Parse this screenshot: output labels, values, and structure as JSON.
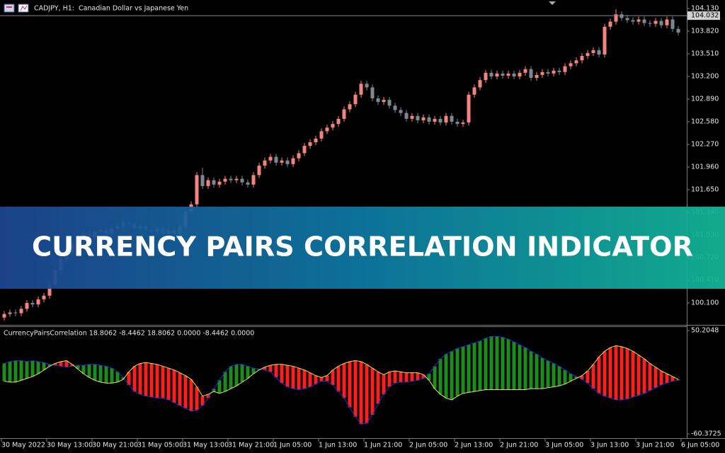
{
  "chart_data": [
    {
      "type": "candlestick",
      "title": "CADJPY, H1:  Canadian Dollar vs Japanese Yen",
      "up_color": "#f4837d",
      "down_color": "#7d8790",
      "open": [
        99.9,
        99.95,
        99.97,
        99.96,
        100.02,
        100.1,
        100.08,
        100.15,
        100.2,
        100.35,
        100.55,
        100.7,
        100.78,
        100.9,
        100.98,
        101.05,
        101.0,
        101.08,
        101.1,
        101.05,
        101.12,
        101.15,
        101.2,
        101.18,
        101.12,
        101.15,
        101.1,
        101.08,
        101.12,
        101.05,
        101.1,
        101.05,
        101.15,
        101.35,
        101.45,
        101.85,
        101.7,
        101.78,
        101.72,
        101.76,
        101.8,
        101.78,
        101.8,
        101.75,
        101.72,
        101.85,
        101.98,
        102.05,
        102.1,
        102.02,
        102.05,
        102.0,
        102.08,
        102.15,
        102.25,
        102.3,
        102.35,
        102.45,
        102.5,
        102.55,
        102.62,
        102.75,
        102.82,
        102.95,
        103.1,
        103.05,
        102.9,
        102.85,
        102.88,
        102.8,
        102.74,
        102.7,
        102.62,
        102.66,
        102.6,
        102.64,
        102.58,
        102.62,
        102.57,
        102.66,
        102.58,
        102.55,
        102.57,
        102.95,
        103.05,
        103.15,
        103.25,
        103.2,
        103.24,
        103.21,
        103.24,
        103.2,
        103.25,
        103.3,
        103.18,
        103.22,
        103.26,
        103.24,
        103.28,
        103.26,
        103.34,
        103.38,
        103.42,
        103.48,
        103.52,
        103.56,
        103.5,
        103.88,
        103.95,
        104.05,
        104.0,
        103.97,
        103.95,
        103.98,
        103.93,
        103.92,
        103.96,
        103.9,
        103.98,
        103.85
      ],
      "high": [
        99.99,
        100.01,
        100.01,
        100.06,
        100.14,
        100.14,
        100.19,
        100.24,
        100.39,
        100.59,
        100.74,
        100.82,
        100.94,
        101.02,
        101.09,
        101.09,
        101.12,
        101.14,
        101.14,
        101.16,
        101.19,
        101.24,
        101.24,
        101.22,
        101.19,
        101.19,
        101.14,
        101.16,
        101.16,
        101.14,
        101.14,
        101.19,
        101.39,
        101.49,
        101.89,
        101.95,
        101.82,
        101.82,
        101.8,
        101.84,
        101.84,
        101.84,
        101.84,
        101.79,
        101.89,
        102.02,
        102.09,
        102.14,
        102.14,
        102.09,
        102.09,
        102.12,
        102.19,
        102.29,
        102.34,
        102.39,
        102.49,
        102.54,
        102.59,
        102.66,
        102.79,
        102.86,
        102.99,
        103.14,
        103.14,
        103.09,
        102.94,
        102.92,
        102.92,
        102.84,
        102.78,
        102.74,
        102.7,
        102.7,
        102.68,
        102.68,
        102.66,
        102.66,
        102.7,
        102.7,
        102.62,
        102.61,
        102.99,
        103.09,
        103.19,
        103.29,
        103.29,
        103.28,
        103.28,
        103.28,
        103.28,
        103.29,
        103.34,
        103.34,
        103.26,
        103.3,
        103.3,
        103.32,
        103.32,
        103.38,
        103.42,
        103.46,
        103.52,
        103.56,
        103.6,
        103.6,
        103.92,
        103.99,
        104.12,
        104.09,
        104.04,
        104.01,
        104.02,
        104.02,
        103.97,
        104.0,
        104.0,
        104.02,
        104.02,
        103.89
      ],
      "low": [
        99.86,
        99.91,
        99.92,
        99.92,
        99.98,
        100.04,
        100.04,
        100.11,
        100.16,
        100.31,
        100.51,
        100.66,
        100.74,
        100.86,
        100.94,
        100.96,
        100.96,
        101.04,
        101.01,
        101.01,
        101.08,
        101.11,
        101.14,
        101.08,
        101.08,
        101.06,
        101.04,
        101.04,
        101.01,
        101.01,
        101.01,
        101.01,
        101.11,
        101.31,
        101.41,
        101.66,
        101.66,
        101.68,
        101.68,
        101.72,
        101.74,
        101.74,
        101.71,
        101.68,
        101.68,
        101.81,
        101.94,
        102.01,
        101.98,
        101.98,
        101.96,
        101.96,
        102.04,
        102.11,
        102.21,
        102.26,
        102.31,
        102.41,
        102.46,
        102.51,
        102.58,
        102.71,
        102.78,
        102.91,
        103.01,
        102.86,
        102.81,
        102.81,
        102.76,
        102.7,
        102.66,
        102.58,
        102.58,
        102.56,
        102.56,
        102.54,
        102.54,
        102.53,
        102.53,
        102.54,
        102.51,
        102.51,
        102.53,
        102.91,
        103.01,
        103.11,
        103.16,
        103.16,
        103.17,
        103.17,
        103.16,
        103.16,
        103.21,
        103.14,
        103.14,
        103.18,
        103.2,
        103.2,
        103.22,
        103.22,
        103.3,
        103.34,
        103.38,
        103.44,
        103.48,
        103.46,
        103.46,
        103.84,
        103.91,
        103.96,
        103.93,
        103.91,
        103.91,
        103.89,
        103.88,
        103.88,
        103.86,
        103.86,
        103.81,
        103.76
      ],
      "close": [
        99.95,
        99.97,
        99.96,
        100.02,
        100.1,
        100.08,
        100.15,
        100.2,
        100.35,
        100.55,
        100.7,
        100.78,
        100.9,
        100.98,
        101.05,
        101.0,
        101.08,
        101.1,
        101.05,
        101.12,
        101.15,
        101.2,
        101.18,
        101.12,
        101.15,
        101.1,
        101.08,
        101.12,
        101.05,
        101.1,
        101.05,
        101.15,
        101.35,
        101.45,
        101.85,
        101.7,
        101.78,
        101.72,
        101.76,
        101.8,
        101.78,
        101.8,
        101.75,
        101.72,
        101.85,
        101.98,
        102.05,
        102.1,
        102.02,
        102.05,
        102.0,
        102.08,
        102.15,
        102.25,
        102.3,
        102.35,
        102.45,
        102.5,
        102.55,
        102.62,
        102.75,
        102.82,
        102.95,
        103.1,
        103.05,
        102.9,
        102.85,
        102.88,
        102.8,
        102.74,
        102.7,
        102.62,
        102.66,
        102.6,
        102.64,
        102.58,
        102.62,
        102.57,
        102.66,
        102.58,
        102.55,
        102.57,
        102.95,
        103.05,
        103.15,
        103.25,
        103.2,
        103.24,
        103.21,
        103.24,
        103.2,
        103.25,
        103.3,
        103.18,
        103.22,
        103.26,
        103.24,
        103.28,
        103.26,
        103.34,
        103.38,
        103.42,
        103.48,
        103.52,
        103.56,
        103.5,
        103.88,
        103.95,
        104.05,
        104.0,
        103.97,
        103.95,
        103.98,
        103.93,
        103.92,
        103.96,
        103.9,
        103.98,
        103.85,
        103.8
      ],
      "current_price": 104.032,
      "ylim": [
        99.81,
        104.246
      ],
      "yticks": [
        {
          "value": 104.13,
          "label": "104.130"
        },
        {
          "value": 103.82,
          "label": "103.820"
        },
        {
          "value": 103.51,
          "label": "103.510"
        },
        {
          "value": 103.2,
          "label": "103.200"
        },
        {
          "value": 102.89,
          "label": "102.890"
        },
        {
          "value": 102.58,
          "label": "102.580"
        },
        {
          "value": 102.27,
          "label": "102.270"
        },
        {
          "value": 101.96,
          "label": "101.960"
        },
        {
          "value": 101.65,
          "label": "101.650"
        },
        {
          "value": 101.34,
          "label": "101.340"
        },
        {
          "value": 101.03,
          "label": "101.030"
        },
        {
          "value": 100.72,
          "label": "100.720"
        },
        {
          "value": 100.41,
          "label": "100.410"
        },
        {
          "value": 100.1,
          "label": "100.100"
        }
      ]
    },
    {
      "type": "histogram-band",
      "title": "CurrencyPairsCorrelation 18.8062 -8.4462 18.8062 0.0000 -8.4462 0.0000",
      "up_color": "#1c8c1c",
      "down_color": "#ff1e1e",
      "series": [
        {
          "color": "#1f2fd8",
          "values": [
            15,
            17,
            18,
            18,
            17,
            18,
            17,
            16,
            14,
            13,
            12,
            11,
            12,
            13,
            13,
            14,
            14,
            13,
            12,
            10,
            6,
            0,
            -8,
            -15,
            -18,
            -20,
            -21,
            -22,
            -22,
            -24,
            -27,
            -30,
            -33,
            -36,
            -35,
            -30,
            -22,
            -12,
            -3,
            6,
            12,
            14,
            14,
            12,
            10,
            9,
            8,
            6,
            0,
            -6,
            -10,
            -12,
            -13,
            -12,
            -10,
            -7,
            -4,
            -4,
            -8,
            -15,
            -22,
            -32,
            -42,
            -50,
            -49,
            -40,
            -28,
            -18,
            -10,
            -6,
            -5,
            -5,
            -4,
            -3,
            -1,
            4,
            12,
            20,
            25,
            28,
            31,
            33,
            35,
            37,
            39,
            42,
            44,
            44,
            43,
            41,
            38,
            35,
            32,
            28,
            25,
            21,
            18,
            15,
            12,
            8,
            4,
            1,
            -2,
            -6,
            -12,
            -17,
            -20,
            -22,
            -24,
            -24,
            -23,
            -21,
            -19,
            -17,
            -14,
            -11,
            -8,
            -6,
            -4,
            -3
          ]
        },
        {
          "color": "#e8e24c",
          "values": [
            -4,
            -5,
            -5,
            -3,
            -1,
            1,
            4,
            8,
            12,
            15,
            17,
            18,
            14,
            9,
            4,
            0,
            -3,
            -5,
            -6,
            -6,
            -5,
            -2,
            6,
            12,
            15,
            16,
            15,
            14,
            12,
            10,
            8,
            5,
            2,
            -2,
            -10,
            -20,
            -18,
            -15,
            -17,
            -15,
            -12,
            -9,
            -5,
            -1,
            4,
            8,
            11,
            13,
            14,
            14,
            13,
            12,
            10,
            8,
            5,
            2,
            0,
            2,
            8,
            12,
            15,
            17,
            18,
            17,
            14,
            10,
            6,
            3,
            6,
            7,
            6,
            5,
            5,
            5,
            3,
            -3,
            -12,
            -18,
            -22,
            -24,
            -20,
            -17,
            -16,
            -15,
            -14,
            -13,
            -13,
            -13,
            -13,
            -13,
            -13,
            -13,
            -13,
            -12,
            -12,
            -12,
            -11,
            -10,
            -9,
            -7,
            -4,
            -1,
            2,
            7,
            14,
            22,
            28,
            32,
            34,
            33,
            31,
            28,
            24,
            20,
            15,
            11,
            7,
            4,
            1,
            -2
          ]
        }
      ],
      "ylim": [
        -60.3725,
        50.2048
      ],
      "yticks": [
        50.2048,
        -60.3725
      ],
      "x_labels": [
        "30 May 2022",
        "30 May 13:00",
        "30 May 21:00",
        "31 May 05:00",
        "31 May 13:00",
        "31 May 21:00",
        "1 Jun 05:00",
        "1 Jun 13:00",
        "1 Jun 21:00",
        "2 Jun 05:00",
        "2 Jun 13:00",
        "2 Jun 21:00",
        "3 Jun 05:00",
        "3 Jun 13:00",
        "3 Jun 21:00",
        "6 Jun 05:00"
      ]
    }
  ],
  "banner": {
    "text": "CURRENCY PAIRS CORRELATION INDICATOR"
  }
}
